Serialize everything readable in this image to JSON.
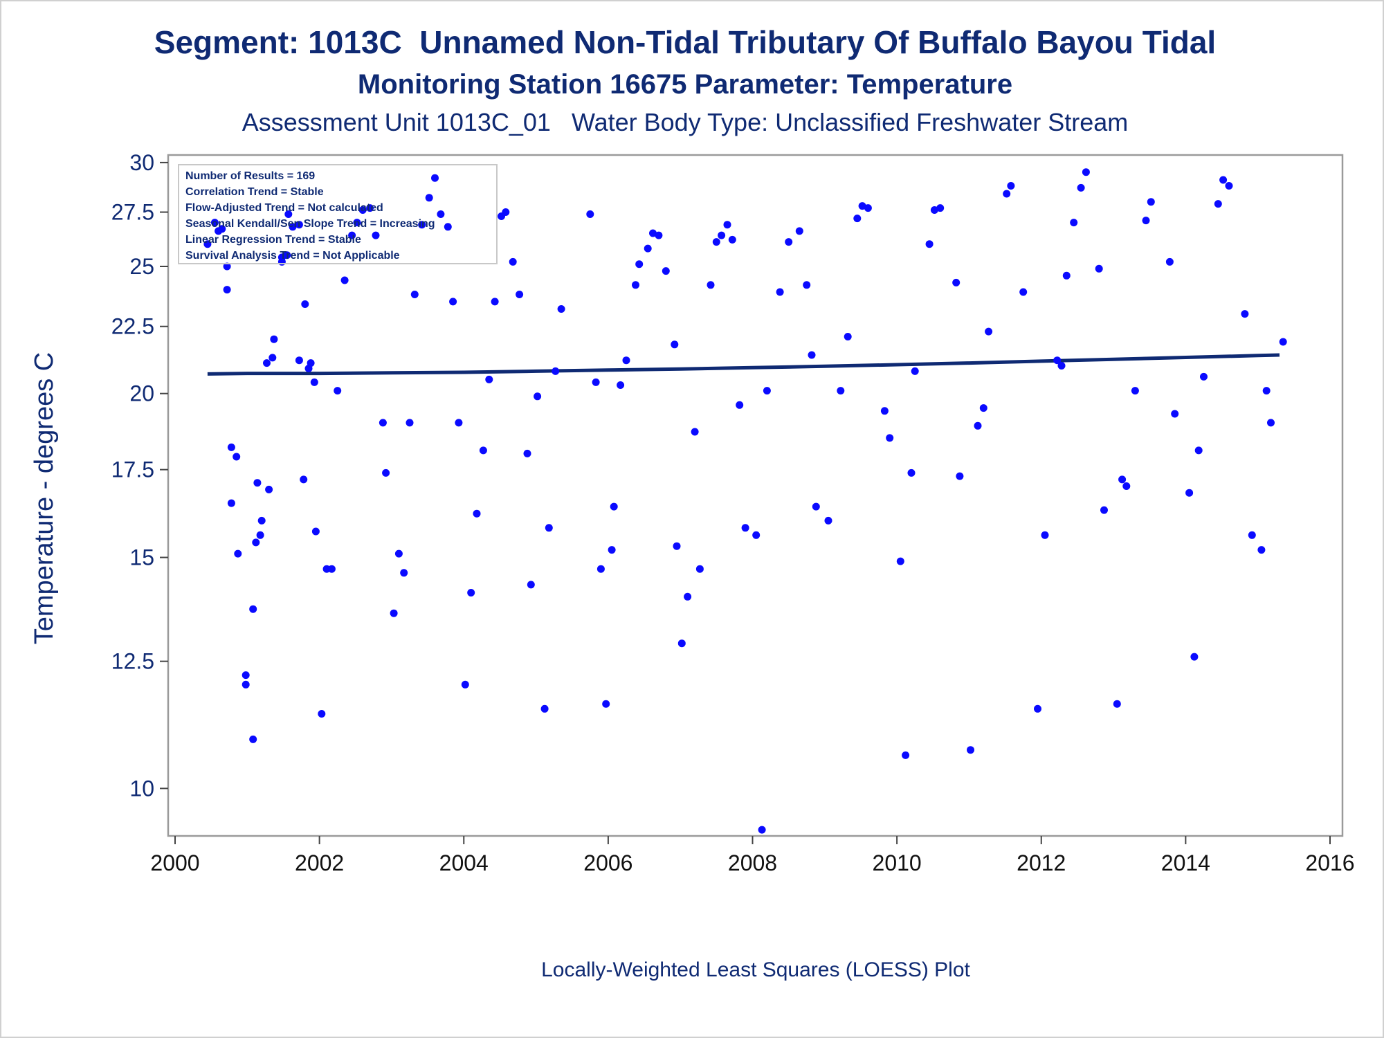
{
  "titles": {
    "line1": "Segment: 1013C  Unnamed Non-Tidal Tributary Of Buffalo Bayou Tidal",
    "line2": "Monitoring Station 16675 Parameter: Temperature",
    "line3": "Assessment Unit 1013C_01   Water Body Type: Unclassified Freshwater Stream"
  },
  "stats_box": [
    "Number of Results = 169",
    "Correlation Trend = Stable",
    "Flow-Adjusted Trend = Not calculated",
    "Seasonal Kendall/Sen Slope Trend = Increasing",
    "Linear Regression Trend = Stable",
    "Survival Analysis Trend = Not Applicable"
  ],
  "chart_data": {
    "type": "scatter",
    "title": "Segment: 1013C  Unnamed Non-Tidal Tributary Of Buffalo Bayou Tidal",
    "xlabel": "Locally-Weighted Least Squares (LOESS) Plot",
    "ylabel": "Temperature - degrees C",
    "x_unit": "year (decimal)",
    "xlim": [
      2000,
      2016
    ],
    "x_ticks": [
      2000,
      2002,
      2004,
      2006,
      2008,
      2010,
      2012,
      2014,
      2016
    ],
    "y_scale": "log",
    "ylim": [
      9.2,
      30.4
    ],
    "y_ticks": [
      10,
      12.5,
      15,
      17.5,
      20,
      22.5,
      25,
      27.5,
      30
    ],
    "y_tick_labels": [
      "10",
      "12.5",
      "15",
      "17.5",
      "20",
      "22.5",
      "25",
      "27.5",
      "30"
    ],
    "grid": false,
    "colors": {
      "points": "#0a0aff",
      "loess_line": "#0f2a73",
      "text": "#0f2a73"
    },
    "loess": {
      "x": [
        2000.45,
        2001,
        2002,
        2003,
        2004,
        2005,
        2006,
        2007,
        2008,
        2009,
        2010,
        2011,
        2012,
        2013,
        2014,
        2015,
        2015.3
      ],
      "y": [
        20.7,
        20.72,
        20.72,
        20.74,
        20.76,
        20.8,
        20.84,
        20.88,
        20.93,
        20.98,
        21.04,
        21.1,
        21.17,
        21.24,
        21.31,
        21.38,
        21.4
      ]
    },
    "points": [
      [
        2000.45,
        26.0
      ],
      [
        2000.55,
        27.0
      ],
      [
        2000.6,
        26.6
      ],
      [
        2000.65,
        26.7
      ],
      [
        2000.72,
        25.0
      ],
      [
        2000.72,
        24.0
      ],
      [
        2000.78,
        18.2
      ],
      [
        2000.78,
        16.5
      ],
      [
        2000.85,
        17.9
      ],
      [
        2000.87,
        15.1
      ],
      [
        2000.98,
        12.2
      ],
      [
        2000.98,
        12.0
      ],
      [
        2001.08,
        13.7
      ],
      [
        2001.08,
        10.9
      ],
      [
        2001.12,
        15.4
      ],
      [
        2001.14,
        17.1
      ],
      [
        2001.18,
        15.6
      ],
      [
        2001.2,
        16.0
      ],
      [
        2001.27,
        21.1
      ],
      [
        2001.3,
        16.9
      ],
      [
        2001.35,
        21.3
      ],
      [
        2001.37,
        22.0
      ],
      [
        2001.48,
        25.4
      ],
      [
        2001.48,
        25.2
      ],
      [
        2001.55,
        25.5
      ],
      [
        2001.57,
        27.4
      ],
      [
        2001.63,
        26.8
      ],
      [
        2001.72,
        26.9
      ],
      [
        2001.72,
        21.2
      ],
      [
        2001.78,
        17.2
      ],
      [
        2001.8,
        23.4
      ],
      [
        2001.85,
        20.9
      ],
      [
        2001.88,
        21.1
      ],
      [
        2001.93,
        20.4
      ],
      [
        2001.95,
        15.7
      ],
      [
        2002.03,
        11.4
      ],
      [
        2002.1,
        14.7
      ],
      [
        2002.17,
        14.7
      ],
      [
        2002.25,
        20.1
      ],
      [
        2002.35,
        24.4
      ],
      [
        2002.45,
        26.4
      ],
      [
        2002.52,
        27.0
      ],
      [
        2002.6,
        27.6
      ],
      [
        2002.7,
        27.7
      ],
      [
        2002.78,
        26.4
      ],
      [
        2002.88,
        19.0
      ],
      [
        2002.92,
        17.4
      ],
      [
        2003.03,
        13.6
      ],
      [
        2003.1,
        15.1
      ],
      [
        2003.17,
        14.6
      ],
      [
        2003.25,
        19.0
      ],
      [
        2003.32,
        23.8
      ],
      [
        2003.42,
        26.9
      ],
      [
        2003.52,
        28.2
      ],
      [
        2003.6,
        29.2
      ],
      [
        2003.68,
        27.4
      ],
      [
        2003.78,
        26.8
      ],
      [
        2003.85,
        23.5
      ],
      [
        2003.93,
        19.0
      ],
      [
        2004.02,
        12.0
      ],
      [
        2004.1,
        14.1
      ],
      [
        2004.18,
        16.2
      ],
      [
        2004.27,
        18.1
      ],
      [
        2004.35,
        20.5
      ],
      [
        2004.43,
        23.5
      ],
      [
        2004.52,
        27.3
      ],
      [
        2004.58,
        27.5
      ],
      [
        2004.68,
        25.2
      ],
      [
        2004.77,
        23.8
      ],
      [
        2004.88,
        18.0
      ],
      [
        2004.93,
        14.3
      ],
      [
        2005.02,
        19.9
      ],
      [
        2005.12,
        11.5
      ],
      [
        2005.18,
        15.8
      ],
      [
        2005.27,
        20.8
      ],
      [
        2005.35,
        23.2
      ],
      [
        2005.75,
        27.4
      ],
      [
        2005.83,
        20.4
      ],
      [
        2005.9,
        14.7
      ],
      [
        2005.97,
        11.6
      ],
      [
        2006.05,
        15.2
      ],
      [
        2006.08,
        16.4
      ],
      [
        2006.17,
        20.3
      ],
      [
        2006.25,
        21.2
      ],
      [
        2006.38,
        24.2
      ],
      [
        2006.43,
        25.1
      ],
      [
        2006.55,
        25.8
      ],
      [
        2006.62,
        26.5
      ],
      [
        2006.7,
        26.4
      ],
      [
        2006.8,
        24.8
      ],
      [
        2006.92,
        21.8
      ],
      [
        2006.95,
        15.3
      ],
      [
        2007.02,
        12.9
      ],
      [
        2007.1,
        14.0
      ],
      [
        2007.2,
        18.7
      ],
      [
        2007.27,
        14.7
      ],
      [
        2007.42,
        24.2
      ],
      [
        2007.5,
        26.1
      ],
      [
        2007.57,
        26.4
      ],
      [
        2007.65,
        26.9
      ],
      [
        2007.72,
        26.2
      ],
      [
        2007.82,
        19.6
      ],
      [
        2007.9,
        15.8
      ],
      [
        2008.05,
        15.6
      ],
      [
        2008.13,
        9.3
      ],
      [
        2008.2,
        20.1
      ],
      [
        2008.38,
        23.9
      ],
      [
        2008.5,
        26.1
      ],
      [
        2008.65,
        26.6
      ],
      [
        2008.75,
        24.2
      ],
      [
        2008.82,
        21.4
      ],
      [
        2008.88,
        16.4
      ],
      [
        2009.05,
        16.0
      ],
      [
        2009.22,
        20.1
      ],
      [
        2009.32,
        22.1
      ],
      [
        2009.45,
        27.2
      ],
      [
        2009.52,
        27.8
      ],
      [
        2009.6,
        27.7
      ],
      [
        2009.83,
        19.4
      ],
      [
        2009.9,
        18.5
      ],
      [
        2010.05,
        14.9
      ],
      [
        2010.12,
        10.6
      ],
      [
        2010.2,
        17.4
      ],
      [
        2010.25,
        20.8
      ],
      [
        2010.45,
        26.0
      ],
      [
        2010.52,
        27.6
      ],
      [
        2010.6,
        27.7
      ],
      [
        2010.82,
        24.3
      ],
      [
        2010.87,
        17.3
      ],
      [
        2011.02,
        10.7
      ],
      [
        2011.12,
        18.9
      ],
      [
        2011.2,
        19.5
      ],
      [
        2011.27,
        22.3
      ],
      [
        2011.52,
        28.4
      ],
      [
        2011.58,
        28.8
      ],
      [
        2011.75,
        23.9
      ],
      [
        2011.95,
        11.5
      ],
      [
        2012.05,
        15.6
      ],
      [
        2012.22,
        21.2
      ],
      [
        2012.28,
        21.0
      ],
      [
        2012.35,
        24.6
      ],
      [
        2012.45,
        27.0
      ],
      [
        2012.55,
        28.7
      ],
      [
        2012.62,
        29.5
      ],
      [
        2012.8,
        24.9
      ],
      [
        2012.87,
        16.3
      ],
      [
        2013.05,
        11.6
      ],
      [
        2013.12,
        17.2
      ],
      [
        2013.18,
        17.0
      ],
      [
        2013.3,
        20.1
      ],
      [
        2013.45,
        27.1
      ],
      [
        2013.52,
        28.0
      ],
      [
        2013.78,
        25.2
      ],
      [
        2013.85,
        19.3
      ],
      [
        2014.05,
        16.8
      ],
      [
        2014.12,
        12.6
      ],
      [
        2014.18,
        18.1
      ],
      [
        2014.25,
        20.6
      ],
      [
        2014.45,
        27.9
      ],
      [
        2014.52,
        29.1
      ],
      [
        2014.6,
        28.8
      ],
      [
        2014.82,
        23.0
      ],
      [
        2014.92,
        15.6
      ],
      [
        2015.05,
        15.2
      ],
      [
        2015.12,
        20.1
      ],
      [
        2015.18,
        19.0
      ],
      [
        2015.35,
        21.9
      ]
    ]
  }
}
